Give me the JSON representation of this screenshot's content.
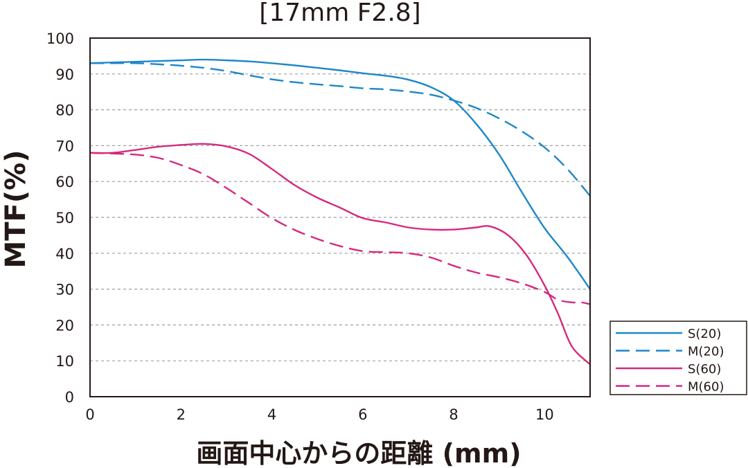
{
  "chart_data": {
    "type": "line",
    "title": "[17mm F2.8]",
    "xlabel": "画面中心からの距離 (mm)",
    "ylabel": "MTF(%)",
    "xlim": [
      0,
      11
    ],
    "ylim": [
      0,
      100
    ],
    "xticks": [
      0,
      2,
      4,
      6,
      8,
      10
    ],
    "yticks": [
      0,
      10,
      20,
      30,
      40,
      50,
      60,
      70,
      80,
      90,
      100
    ],
    "grid": "horizontal dashed",
    "legend_position": "bottom-right outside",
    "series": [
      {
        "name": "S(20)",
        "color": "#1b87c9",
        "dash": "solid",
        "x": [
          0,
          0.5,
          1,
          1.5,
          2,
          2.5,
          3,
          3.5,
          4,
          4.5,
          5,
          5.5,
          6,
          6.5,
          7,
          7.5,
          8,
          8.5,
          9,
          9.5,
          10,
          10.5,
          11
        ],
        "y": [
          93,
          93.2,
          93.4,
          93.6,
          93.8,
          94,
          93.8,
          93.5,
          93,
          92.4,
          91.7,
          91,
          90.2,
          89.5,
          88.4,
          86.3,
          82.6,
          76,
          67.5,
          57,
          47,
          39,
          30
        ]
      },
      {
        "name": "M(20)",
        "color": "#1b87c9",
        "dash": "dashed",
        "x": [
          0,
          0.5,
          1,
          1.5,
          2,
          2.5,
          3,
          3.5,
          4,
          4.5,
          5,
          5.5,
          6,
          6.5,
          7,
          7.5,
          8,
          8.5,
          9,
          9.5,
          10,
          10.5,
          11
        ],
        "y": [
          93,
          93,
          93,
          92.7,
          92.3,
          91.7,
          90.8,
          89.6,
          88.5,
          87.7,
          87.1,
          86.6,
          86,
          85.7,
          85.1,
          84.2,
          82.6,
          80.5,
          77.6,
          74,
          69.5,
          63.5,
          56
        ]
      },
      {
        "name": "S(60)",
        "color": "#d6287e",
        "dash": "solid",
        "x": [
          0,
          0.5,
          1,
          1.5,
          2,
          2.5,
          3,
          3.5,
          4,
          4.5,
          5,
          5.5,
          6,
          6.5,
          7,
          7.5,
          8,
          8.5,
          8.8,
          9.2,
          9.6,
          10,
          10.3,
          10.6,
          11
        ],
        "y": [
          68,
          68,
          68.8,
          69.7,
          70.2,
          70.5,
          69.8,
          67.7,
          63.5,
          59,
          55.5,
          52.7,
          49.8,
          48.6,
          47.2,
          46.6,
          46.6,
          47.2,
          47.5,
          45,
          39.5,
          31,
          23,
          14,
          9
        ]
      },
      {
        "name": "M(60)",
        "color": "#d6287e",
        "dash": "dashed",
        "x": [
          0,
          0.5,
          1,
          1.5,
          2,
          2.5,
          3,
          3.5,
          4,
          4.5,
          5,
          5.5,
          6,
          6.5,
          7,
          7.5,
          8,
          8.5,
          9,
          9.5,
          10,
          10.3,
          10.6,
          10.8,
          11
        ],
        "y": [
          68,
          67.8,
          67.5,
          66.6,
          64.6,
          62,
          58.2,
          54,
          49.8,
          46.5,
          44,
          42,
          40.6,
          40.3,
          40,
          38.8,
          36.5,
          34.6,
          33.3,
          31.6,
          29.2,
          27,
          26.3,
          26.3,
          25.8
        ]
      }
    ]
  }
}
